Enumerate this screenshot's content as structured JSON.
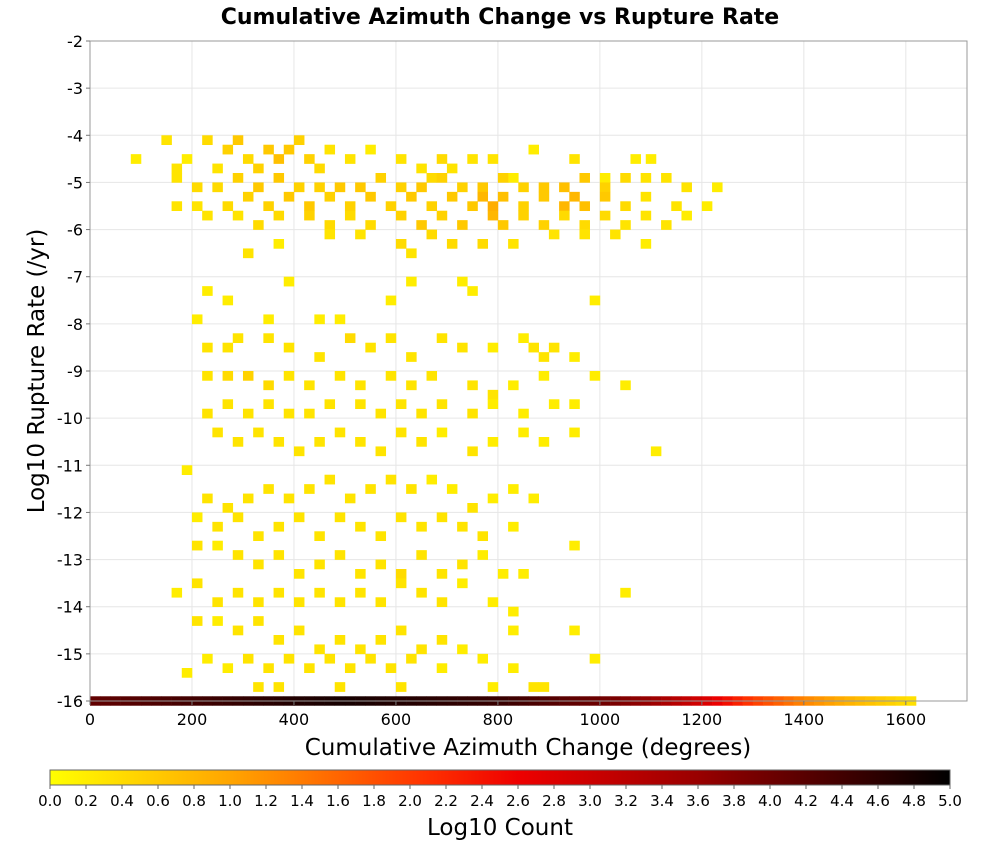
{
  "chart_data": {
    "type": "heatmap",
    "title": "Cumulative Azimuth Change vs Rupture Rate",
    "xlabel": "Cumulative Azimuth Change (degrees)",
    "ylabel": "Log10 Rupture Rate (/yr)",
    "xlim": [
      0,
      1720
    ],
    "ylim": [
      -16,
      -2
    ],
    "x_ticks": [
      "0",
      "200",
      "400",
      "600",
      "800",
      "1000",
      "1200",
      "1400",
      "1600"
    ],
    "y_ticks": [
      "-2",
      "-3",
      "-4",
      "-5",
      "-6",
      "-7",
      "-8",
      "-9",
      "-10",
      "-11",
      "-12",
      "-13",
      "-14",
      "-15",
      "-16"
    ],
    "grid": true,
    "bin_width": 20,
    "bin_height": 0.2,
    "colorbar": {
      "label": "Log10 Count",
      "min": 0.0,
      "max": 5.0,
      "ticks": [
        "0.0",
        "0.2",
        "0.4",
        "0.6",
        "0.8",
        "1.0",
        "1.2",
        "1.4",
        "1.6",
        "1.8",
        "2.0",
        "2.2",
        "2.4",
        "2.6",
        "2.8",
        "3.0",
        "3.2",
        "3.4",
        "3.6",
        "3.8",
        "4.0",
        "4.2",
        "4.4",
        "4.6",
        "4.8",
        "5.0"
      ],
      "colors": [
        "#ffff00",
        "#ffa500",
        "#ff3000",
        "#ee0000",
        "#990000",
        "#000000"
      ]
    },
    "bins": [
      [
        90,
        -4.5,
        0.2
      ],
      [
        150,
        -4.1,
        0.3
      ],
      [
        170,
        -4.7,
        0.3
      ],
      [
        190,
        -4.5,
        0.2
      ],
      [
        230,
        -4.1,
        0.4
      ],
      [
        250,
        -4.7,
        0.3
      ],
      [
        270,
        -4.3,
        0.5
      ],
      [
        290,
        -4.1,
        0.6
      ],
      [
        310,
        -4.5,
        0.4
      ],
      [
        330,
        -4.7,
        0.5
      ],
      [
        350,
        -4.3,
        0.6
      ],
      [
        370,
        -4.5,
        0.7
      ],
      [
        390,
        -4.3,
        0.6
      ],
      [
        410,
        -4.1,
        0.5
      ],
      [
        430,
        -4.5,
        0.5
      ],
      [
        450,
        -4.7,
        0.4
      ],
      [
        470,
        -4.3,
        0.3
      ],
      [
        510,
        -4.5,
        0.3
      ],
      [
        550,
        -4.3,
        0.2
      ],
      [
        610,
        -4.5,
        0.3
      ],
      [
        650,
        -4.7,
        0.3
      ],
      [
        670,
        -4.9,
        0.4
      ],
      [
        690,
        -4.5,
        0.4
      ],
      [
        710,
        -4.7,
        0.3
      ],
      [
        750,
        -4.5,
        0.3
      ],
      [
        790,
        -4.5,
        0.3
      ],
      [
        830,
        -4.9,
        0.2
      ],
      [
        870,
        -4.3,
        0.2
      ],
      [
        950,
        -4.5,
        0.3
      ],
      [
        1010,
        -4.9,
        0.2
      ],
      [
        1070,
        -4.5,
        0.2
      ],
      [
        1100,
        -4.5,
        0.2
      ],
      [
        170,
        -4.9,
        0.3
      ],
      [
        210,
        -5.1,
        0.4
      ],
      [
        250,
        -5.1,
        0.4
      ],
      [
        290,
        -4.9,
        0.5
      ],
      [
        330,
        -5.1,
        0.6
      ],
      [
        370,
        -4.9,
        0.6
      ],
      [
        410,
        -5.1,
        0.5
      ],
      [
        450,
        -5.1,
        0.5
      ],
      [
        490,
        -5.1,
        0.6
      ],
      [
        530,
        -5.1,
        0.6
      ],
      [
        570,
        -4.9,
        0.5
      ],
      [
        610,
        -5.1,
        0.5
      ],
      [
        650,
        -5.1,
        0.6
      ],
      [
        690,
        -4.9,
        0.5
      ],
      [
        730,
        -5.1,
        0.5
      ],
      [
        770,
        -5.1,
        0.6
      ],
      [
        810,
        -4.9,
        0.5
      ],
      [
        850,
        -5.1,
        0.5
      ],
      [
        890,
        -5.1,
        0.6
      ],
      [
        930,
        -5.1,
        0.7
      ],
      [
        970,
        -4.9,
        0.6
      ],
      [
        1010,
        -5.1,
        0.5
      ],
      [
        1050,
        -4.9,
        0.4
      ],
      [
        1090,
        -4.9,
        0.3
      ],
      [
        1130,
        -4.9,
        0.3
      ],
      [
        1170,
        -5.1,
        0.3
      ],
      [
        1230,
        -5.1,
        0.2
      ],
      [
        170,
        -5.5,
        0.3
      ],
      [
        210,
        -5.5,
        0.3
      ],
      [
        270,
        -5.5,
        0.4
      ],
      [
        310,
        -5.3,
        0.5
      ],
      [
        350,
        -5.5,
        0.5
      ],
      [
        390,
        -5.3,
        0.6
      ],
      [
        430,
        -5.5,
        0.6
      ],
      [
        470,
        -5.3,
        0.5
      ],
      [
        510,
        -5.5,
        0.5
      ],
      [
        550,
        -5.3,
        0.6
      ],
      [
        590,
        -5.5,
        0.5
      ],
      [
        630,
        -5.3,
        0.6
      ],
      [
        670,
        -5.5,
        0.5
      ],
      [
        710,
        -5.3,
        0.6
      ],
      [
        750,
        -5.5,
        0.6
      ],
      [
        770,
        -5.3,
        0.8
      ],
      [
        790,
        -5.5,
        0.9
      ],
      [
        810,
        -5.3,
        0.7
      ],
      [
        850,
        -5.5,
        0.5
      ],
      [
        890,
        -5.3,
        0.6
      ],
      [
        930,
        -5.5,
        0.8
      ],
      [
        950,
        -5.3,
        0.8
      ],
      [
        970,
        -5.5,
        0.7
      ],
      [
        1010,
        -5.3,
        0.6
      ],
      [
        1050,
        -5.5,
        0.4
      ],
      [
        1090,
        -5.3,
        0.3
      ],
      [
        1150,
        -5.5,
        0.3
      ],
      [
        1210,
        -5.5,
        0.2
      ],
      [
        230,
        -5.7,
        0.3
      ],
      [
        290,
        -5.7,
        0.3
      ],
      [
        330,
        -5.9,
        0.4
      ],
      [
        370,
        -5.7,
        0.4
      ],
      [
        430,
        -5.7,
        0.5
      ],
      [
        470,
        -5.9,
        0.4
      ],
      [
        510,
        -5.7,
        0.4
      ],
      [
        550,
        -5.9,
        0.4
      ],
      [
        610,
        -5.7,
        0.5
      ],
      [
        650,
        -5.9,
        0.6
      ],
      [
        690,
        -5.7,
        0.5
      ],
      [
        730,
        -5.9,
        0.6
      ],
      [
        790,
        -5.7,
        0.8
      ],
      [
        810,
        -5.9,
        0.6
      ],
      [
        850,
        -5.7,
        0.5
      ],
      [
        890,
        -5.9,
        0.5
      ],
      [
        930,
        -5.7,
        0.4
      ],
      [
        970,
        -5.9,
        0.4
      ],
      [
        1010,
        -5.7,
        0.4
      ],
      [
        1050,
        -5.9,
        0.3
      ],
      [
        1090,
        -5.7,
        0.3
      ],
      [
        1130,
        -5.9,
        0.3
      ],
      [
        1170,
        -5.7,
        0.2
      ],
      [
        370,
        -6.3,
        0.2
      ],
      [
        470,
        -6.1,
        0.3
      ],
      [
        530,
        -6.1,
        0.3
      ],
      [
        610,
        -6.3,
        0.4
      ],
      [
        670,
        -6.1,
        0.4
      ],
      [
        710,
        -6.3,
        0.4
      ],
      [
        770,
        -6.3,
        0.4
      ],
      [
        830,
        -6.3,
        0.3
      ],
      [
        910,
        -6.1,
        0.3
      ],
      [
        970,
        -6.1,
        0.3
      ],
      [
        1030,
        -6.1,
        0.3
      ],
      [
        1090,
        -6.3,
        0.2
      ],
      [
        630,
        -6.5,
        0.3
      ],
      [
        310,
        -6.5,
        0.3
      ],
      [
        390,
        -7.1,
        0.2
      ],
      [
        730,
        -7.1,
        0.2
      ],
      [
        750,
        -7.3,
        0.2
      ],
      [
        630,
        -7.1,
        0.2
      ],
      [
        270,
        -7.5,
        0.2
      ],
      [
        230,
        -7.3,
        0.2
      ],
      [
        590,
        -7.5,
        0.2
      ],
      [
        990,
        -7.5,
        0.2
      ],
      [
        210,
        -7.9,
        0.2
      ],
      [
        350,
        -7.9,
        0.2
      ],
      [
        450,
        -7.9,
        0.2
      ],
      [
        490,
        -7.9,
        0.2
      ],
      [
        230,
        -8.5,
        0.3
      ],
      [
        270,
        -8.5,
        0.3
      ],
      [
        290,
        -8.3,
        0.3
      ],
      [
        350,
        -8.3,
        0.3
      ],
      [
        390,
        -8.5,
        0.3
      ],
      [
        450,
        -8.7,
        0.3
      ],
      [
        510,
        -8.3,
        0.4
      ],
      [
        550,
        -8.5,
        0.3
      ],
      [
        590,
        -8.3,
        0.3
      ],
      [
        630,
        -8.7,
        0.3
      ],
      [
        690,
        -8.3,
        0.3
      ],
      [
        730,
        -8.5,
        0.3
      ],
      [
        790,
        -8.5,
        0.2
      ],
      [
        850,
        -8.3,
        0.2
      ],
      [
        870,
        -8.5,
        0.3
      ],
      [
        890,
        -8.7,
        0.3
      ],
      [
        910,
        -8.5,
        0.3
      ],
      [
        950,
        -8.7,
        0.2
      ],
      [
        230,
        -9.1,
        0.3
      ],
      [
        270,
        -9.1,
        0.4
      ],
      [
        310,
        -9.1,
        0.5
      ],
      [
        350,
        -9.3,
        0.4
      ],
      [
        390,
        -9.1,
        0.3
      ],
      [
        430,
        -9.3,
        0.3
      ],
      [
        490,
        -9.1,
        0.3
      ],
      [
        530,
        -9.3,
        0.3
      ],
      [
        590,
        -9.1,
        0.3
      ],
      [
        630,
        -9.3,
        0.3
      ],
      [
        670,
        -9.1,
        0.3
      ],
      [
        750,
        -9.3,
        0.3
      ],
      [
        790,
        -9.5,
        0.3
      ],
      [
        830,
        -9.3,
        0.2
      ],
      [
        890,
        -9.1,
        0.2
      ],
      [
        990,
        -9.1,
        0.2
      ],
      [
        1050,
        -9.3,
        0.2
      ],
      [
        230,
        -9.9,
        0.3
      ],
      [
        270,
        -9.7,
        0.3
      ],
      [
        310,
        -9.9,
        0.3
      ],
      [
        350,
        -9.7,
        0.3
      ],
      [
        390,
        -9.9,
        0.3
      ],
      [
        430,
        -9.9,
        0.3
      ],
      [
        470,
        -9.7,
        0.3
      ],
      [
        530,
        -9.7,
        0.3
      ],
      [
        570,
        -9.9,
        0.3
      ],
      [
        610,
        -9.7,
        0.3
      ],
      [
        650,
        -9.9,
        0.3
      ],
      [
        690,
        -9.7,
        0.3
      ],
      [
        750,
        -9.9,
        0.3
      ],
      [
        790,
        -9.7,
        0.2
      ],
      [
        850,
        -9.9,
        0.2
      ],
      [
        910,
        -9.7,
        0.2
      ],
      [
        950,
        -9.7,
        0.2
      ],
      [
        250,
        -10.3,
        0.3
      ],
      [
        290,
        -10.5,
        0.3
      ],
      [
        330,
        -10.3,
        0.3
      ],
      [
        370,
        -10.5,
        0.3
      ],
      [
        410,
        -10.7,
        0.3
      ],
      [
        450,
        -10.5,
        0.3
      ],
      [
        490,
        -10.3,
        0.3
      ],
      [
        530,
        -10.5,
        0.3
      ],
      [
        570,
        -10.7,
        0.3
      ],
      [
        610,
        -10.3,
        0.3
      ],
      [
        650,
        -10.5,
        0.3
      ],
      [
        690,
        -10.3,
        0.2
      ],
      [
        750,
        -10.7,
        0.3
      ],
      [
        790,
        -10.5,
        0.2
      ],
      [
        850,
        -10.3,
        0.2
      ],
      [
        890,
        -10.5,
        0.2
      ],
      [
        950,
        -10.3,
        0.2
      ],
      [
        1110,
        -10.7,
        0.2
      ],
      [
        190,
        -11.1,
        0.2
      ],
      [
        230,
        -11.7,
        0.3
      ],
      [
        270,
        -11.9,
        0.3
      ],
      [
        310,
        -11.7,
        0.3
      ],
      [
        350,
        -11.5,
        0.3
      ],
      [
        390,
        -11.7,
        0.3
      ],
      [
        430,
        -11.5,
        0.3
      ],
      [
        470,
        -11.3,
        0.3
      ],
      [
        510,
        -11.7,
        0.3
      ],
      [
        550,
        -11.5,
        0.3
      ],
      [
        590,
        -11.3,
        0.3
      ],
      [
        630,
        -11.5,
        0.3
      ],
      [
        670,
        -11.3,
        0.2
      ],
      [
        710,
        -11.5,
        0.2
      ],
      [
        750,
        -11.9,
        0.3
      ],
      [
        790,
        -11.7,
        0.2
      ],
      [
        830,
        -11.5,
        0.2
      ],
      [
        870,
        -11.7,
        0.2
      ],
      [
        210,
        -12.1,
        0.2
      ],
      [
        250,
        -12.3,
        0.3
      ],
      [
        290,
        -12.1,
        0.3
      ],
      [
        330,
        -12.5,
        0.3
      ],
      [
        370,
        -12.3,
        0.3
      ],
      [
        410,
        -12.1,
        0.3
      ],
      [
        450,
        -12.5,
        0.3
      ],
      [
        490,
        -12.1,
        0.3
      ],
      [
        530,
        -12.3,
        0.3
      ],
      [
        570,
        -12.5,
        0.3
      ],
      [
        610,
        -12.1,
        0.3
      ],
      [
        650,
        -12.3,
        0.3
      ],
      [
        690,
        -12.1,
        0.3
      ],
      [
        730,
        -12.3,
        0.3
      ],
      [
        770,
        -12.5,
        0.3
      ],
      [
        830,
        -12.3,
        0.2
      ],
      [
        210,
        -12.7,
        0.3
      ],
      [
        250,
        -12.7,
        0.2
      ],
      [
        290,
        -12.9,
        0.3
      ],
      [
        330,
        -13.1,
        0.3
      ],
      [
        370,
        -12.9,
        0.3
      ],
      [
        410,
        -13.3,
        0.3
      ],
      [
        450,
        -13.1,
        0.3
      ],
      [
        490,
        -12.9,
        0.3
      ],
      [
        530,
        -13.3,
        0.3
      ],
      [
        570,
        -13.1,
        0.3
      ],
      [
        610,
        -13.3,
        0.4
      ],
      [
        650,
        -12.9,
        0.3
      ],
      [
        690,
        -13.3,
        0.3
      ],
      [
        730,
        -13.1,
        0.3
      ],
      [
        770,
        -12.9,
        0.2
      ],
      [
        810,
        -13.3,
        0.2
      ],
      [
        850,
        -13.3,
        0.2
      ],
      [
        950,
        -12.7,
        0.2
      ],
      [
        170,
        -13.7,
        0.2
      ],
      [
        210,
        -13.5,
        0.3
      ],
      [
        250,
        -13.9,
        0.3
      ],
      [
        290,
        -13.7,
        0.3
      ],
      [
        330,
        -13.9,
        0.3
      ],
      [
        370,
        -13.7,
        0.3
      ],
      [
        410,
        -13.9,
        0.3
      ],
      [
        450,
        -13.7,
        0.3
      ],
      [
        490,
        -13.9,
        0.3
      ],
      [
        530,
        -13.7,
        0.3
      ],
      [
        570,
        -13.9,
        0.3
      ],
      [
        610,
        -13.5,
        0.3
      ],
      [
        650,
        -13.7,
        0.3
      ],
      [
        690,
        -13.9,
        0.3
      ],
      [
        730,
        -13.5,
        0.2
      ],
      [
        790,
        -13.9,
        0.2
      ],
      [
        830,
        -14.1,
        0.2
      ],
      [
        1050,
        -13.7,
        0.2
      ],
      [
        210,
        -14.3,
        0.3
      ],
      [
        250,
        -14.3,
        0.2
      ],
      [
        290,
        -14.5,
        0.3
      ],
      [
        330,
        -14.3,
        0.3
      ],
      [
        370,
        -14.7,
        0.3
      ],
      [
        410,
        -14.5,
        0.3
      ],
      [
        450,
        -14.9,
        0.3
      ],
      [
        490,
        -14.7,
        0.3
      ],
      [
        530,
        -14.9,
        0.3
      ],
      [
        570,
        -14.7,
        0.3
      ],
      [
        610,
        -14.5,
        0.3
      ],
      [
        650,
        -14.9,
        0.3
      ],
      [
        690,
        -14.7,
        0.3
      ],
      [
        730,
        -14.9,
        0.2
      ],
      [
        830,
        -14.5,
        0.2
      ],
      [
        950,
        -14.5,
        0.2
      ],
      [
        190,
        -15.4,
        0.2
      ],
      [
        230,
        -15.1,
        0.2
      ],
      [
        270,
        -15.3,
        0.2
      ],
      [
        310,
        -15.1,
        0.3
      ],
      [
        350,
        -15.3,
        0.3
      ],
      [
        390,
        -15.1,
        0.3
      ],
      [
        430,
        -15.3,
        0.3
      ],
      [
        470,
        -15.1,
        0.3
      ],
      [
        510,
        -15.3,
        0.3
      ],
      [
        550,
        -15.1,
        0.3
      ],
      [
        590,
        -15.3,
        0.3
      ],
      [
        630,
        -15.1,
        0.3
      ],
      [
        690,
        -15.3,
        0.2
      ],
      [
        770,
        -15.1,
        0.2
      ],
      [
        830,
        -15.3,
        0.2
      ],
      [
        990,
        -15.1,
        0.2
      ],
      [
        330,
        -15.7,
        0.3
      ],
      [
        370,
        -15.7,
        0.3
      ],
      [
        490,
        -15.7,
        0.3
      ],
      [
        610,
        -15.7,
        0.3
      ],
      [
        790,
        -15.7,
        0.2
      ],
      [
        870,
        -15.7,
        0.3
      ],
      [
        890,
        -15.7,
        0.3
      ]
    ],
    "bottom_row": {
      "y": -16,
      "x_start": 0,
      "x_end": 1620,
      "log10_counts_by_x": [
        [
          0,
          4.1
        ],
        [
          200,
          4.4
        ],
        [
          400,
          4.7
        ],
        [
          500,
          4.8
        ],
        [
          600,
          4.7
        ],
        [
          800,
          4.5
        ],
        [
          1000,
          4.0
        ],
        [
          1100,
          3.6
        ],
        [
          1200,
          2.9
        ],
        [
          1300,
          2.0
        ],
        [
          1400,
          1.3
        ],
        [
          1500,
          0.8
        ],
        [
          1620,
          0.3
        ]
      ]
    }
  }
}
